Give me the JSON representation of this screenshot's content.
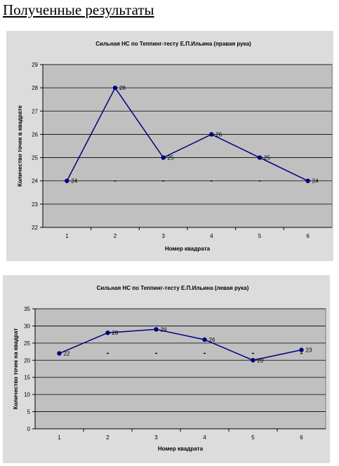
{
  "page": {
    "heading": "Полученные результаты"
  },
  "chart_data": [
    {
      "type": "line",
      "title": "Сильная НС по Теппинг-тесту Е.П.Ильина (правая рука)",
      "xlabel": "Номер квадрата",
      "ylabel": "Количество точек в квадрате",
      "categories": [
        "1",
        "2",
        "3",
        "4",
        "5",
        "6"
      ],
      "series": [
        {
          "values": [
            24,
            28,
            25,
            26,
            25,
            24
          ],
          "color": "#00007f",
          "data_labels": [
            "24",
            "28",
            "25",
            "26",
            "25",
            "24"
          ]
        }
      ],
      "baseline_marks": [
        24,
        24,
        24,
        24,
        24,
        24
      ],
      "ylim": [
        22,
        29
      ],
      "yticks": [
        "22",
        "23",
        "24",
        "25",
        "26",
        "27",
        "28",
        "29"
      ],
      "grid": true,
      "legend": "none",
      "plot_bg": "#c0c0c0",
      "chart_bg": "#dcdcdc"
    },
    {
      "type": "line",
      "title": "Сильная НС по Теппинг-тесту Е.П.Ильина (левая рука)",
      "xlabel": "Номер квадрата",
      "ylabel": "Количество точек на квадрат",
      "categories": [
        "1",
        "2",
        "3",
        "4",
        "5",
        "6"
      ],
      "series": [
        {
          "values": [
            22,
            28,
            29,
            26,
            20,
            23
          ],
          "color": "#00007f",
          "data_labels": [
            "22",
            "28",
            "29",
            "26",
            "20",
            "23"
          ]
        }
      ],
      "baseline_marks": [
        22,
        22,
        22,
        22,
        22,
        22
      ],
      "ylim": [
        0,
        35
      ],
      "yticks": [
        "0",
        "5",
        "10",
        "15",
        "20",
        "25",
        "30",
        "35"
      ],
      "grid": true,
      "legend": "none",
      "plot_bg": "#c0c0c0",
      "chart_bg": "#dcdcdc"
    }
  ]
}
